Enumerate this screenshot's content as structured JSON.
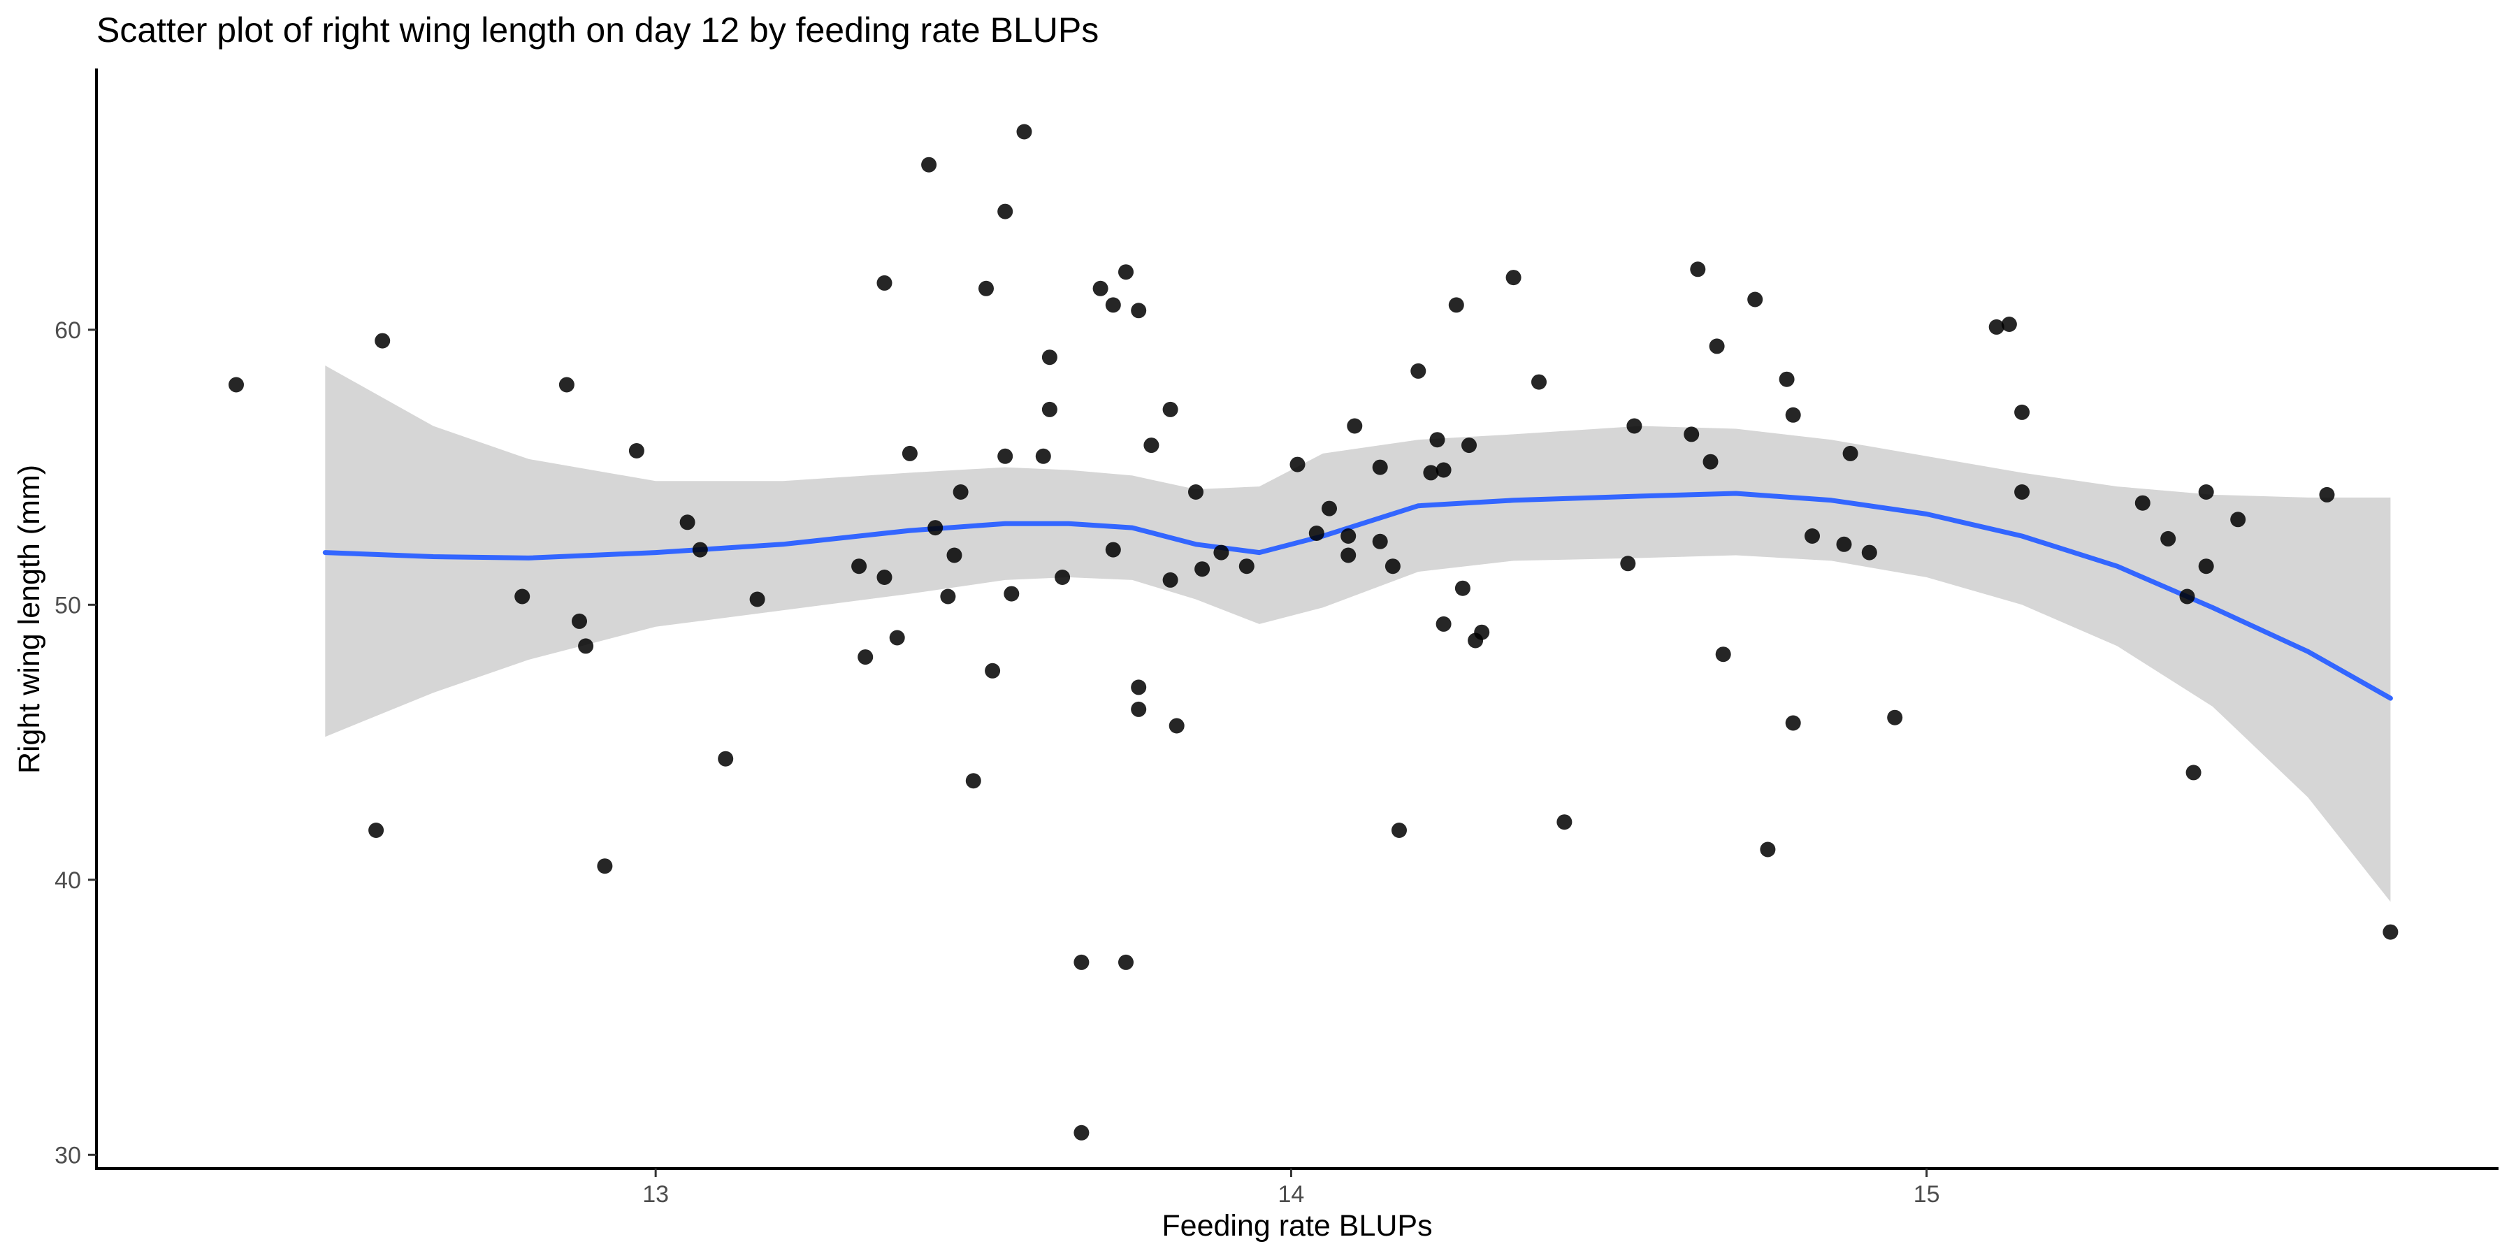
{
  "chart_data": {
    "type": "scatter",
    "title": "Scatter plot of right wing length on day 12 by feeding rate BLUPs",
    "xlabel": "Feeding rate BLUPs",
    "ylabel": "Right wing length (mm)",
    "xlim": [
      12.12,
      15.9
    ],
    "ylim": [
      29.5,
      69.5
    ],
    "x_ticks": [
      13,
      14,
      15
    ],
    "y_ticks": [
      30,
      40,
      50,
      60
    ],
    "grid": false,
    "legend": "none",
    "point_color": "#000000",
    "smooth_color": "#3366ff",
    "band_color": "#999999",
    "points": [
      {
        "x": 12.34,
        "y": 58.0
      },
      {
        "x": 12.57,
        "y": 59.6
      },
      {
        "x": 12.56,
        "y": 41.8
      },
      {
        "x": 12.79,
        "y": 50.3
      },
      {
        "x": 12.86,
        "y": 58.0
      },
      {
        "x": 12.88,
        "y": 49.4
      },
      {
        "x": 12.89,
        "y": 48.5
      },
      {
        "x": 12.92,
        "y": 40.5
      },
      {
        "x": 12.97,
        "y": 55.6
      },
      {
        "x": 13.05,
        "y": 53.0
      },
      {
        "x": 13.07,
        "y": 52.0
      },
      {
        "x": 13.11,
        "y": 44.4
      },
      {
        "x": 13.16,
        "y": 50.2
      },
      {
        "x": 13.32,
        "y": 51.4
      },
      {
        "x": 13.33,
        "y": 48.1
      },
      {
        "x": 13.36,
        "y": 51.0
      },
      {
        "x": 13.36,
        "y": 61.7
      },
      {
        "x": 13.38,
        "y": 48.8
      },
      {
        "x": 13.4,
        "y": 55.5
      },
      {
        "x": 13.43,
        "y": 66.0
      },
      {
        "x": 13.44,
        "y": 52.8
      },
      {
        "x": 13.46,
        "y": 50.3
      },
      {
        "x": 13.47,
        "y": 51.8
      },
      {
        "x": 13.48,
        "y": 54.1
      },
      {
        "x": 13.5,
        "y": 43.6
      },
      {
        "x": 13.52,
        "y": 61.5
      },
      {
        "x": 13.53,
        "y": 47.6
      },
      {
        "x": 13.55,
        "y": 55.4
      },
      {
        "x": 13.55,
        "y": 64.3
      },
      {
        "x": 13.56,
        "y": 50.4
      },
      {
        "x": 13.58,
        "y": 67.2
      },
      {
        "x": 13.61,
        "y": 55.4
      },
      {
        "x": 13.62,
        "y": 57.1
      },
      {
        "x": 13.62,
        "y": 59.0
      },
      {
        "x": 13.64,
        "y": 51.0
      },
      {
        "x": 13.67,
        "y": 30.8
      },
      {
        "x": 13.67,
        "y": 37.0
      },
      {
        "x": 13.7,
        "y": 61.5
      },
      {
        "x": 13.72,
        "y": 52.0
      },
      {
        "x": 13.72,
        "y": 60.9
      },
      {
        "x": 13.74,
        "y": 62.1
      },
      {
        "x": 13.74,
        "y": 37.0
      },
      {
        "x": 13.76,
        "y": 47.0
      },
      {
        "x": 13.76,
        "y": 46.2
      },
      {
        "x": 13.76,
        "y": 60.7
      },
      {
        "x": 13.78,
        "y": 55.8
      },
      {
        "x": 13.81,
        "y": 50.9
      },
      {
        "x": 13.81,
        "y": 57.1
      },
      {
        "x": 13.82,
        "y": 45.6
      },
      {
        "x": 13.85,
        "y": 54.1
      },
      {
        "x": 13.86,
        "y": 51.3
      },
      {
        "x": 13.89,
        "y": 51.9
      },
      {
        "x": 13.93,
        "y": 51.4
      },
      {
        "x": 14.01,
        "y": 55.1
      },
      {
        "x": 14.04,
        "y": 52.6
      },
      {
        "x": 14.06,
        "y": 53.5
      },
      {
        "x": 14.09,
        "y": 52.5
      },
      {
        "x": 14.09,
        "y": 51.8
      },
      {
        "x": 14.1,
        "y": 56.5
      },
      {
        "x": 14.14,
        "y": 52.3
      },
      {
        "x": 14.14,
        "y": 55.0
      },
      {
        "x": 14.16,
        "y": 51.4
      },
      {
        "x": 14.17,
        "y": 41.8
      },
      {
        "x": 14.2,
        "y": 58.5
      },
      {
        "x": 14.22,
        "y": 54.8
      },
      {
        "x": 14.23,
        "y": 56.0
      },
      {
        "x": 14.24,
        "y": 54.9
      },
      {
        "x": 14.24,
        "y": 49.3
      },
      {
        "x": 14.26,
        "y": 60.9
      },
      {
        "x": 14.27,
        "y": 50.6
      },
      {
        "x": 14.28,
        "y": 55.8
      },
      {
        "x": 14.29,
        "y": 48.7
      },
      {
        "x": 14.3,
        "y": 49.0
      },
      {
        "x": 14.35,
        "y": 61.9
      },
      {
        "x": 14.39,
        "y": 58.1
      },
      {
        "x": 14.43,
        "y": 42.1
      },
      {
        "x": 14.53,
        "y": 51.5
      },
      {
        "x": 14.54,
        "y": 56.5
      },
      {
        "x": 14.63,
        "y": 56.2
      },
      {
        "x": 14.64,
        "y": 62.2
      },
      {
        "x": 14.66,
        "y": 55.2
      },
      {
        "x": 14.67,
        "y": 59.4
      },
      {
        "x": 14.68,
        "y": 48.2
      },
      {
        "x": 14.73,
        "y": 61.1
      },
      {
        "x": 14.75,
        "y": 41.1
      },
      {
        "x": 14.78,
        "y": 58.2
      },
      {
        "x": 14.79,
        "y": 45.7
      },
      {
        "x": 14.79,
        "y": 56.9
      },
      {
        "x": 14.82,
        "y": 52.5
      },
      {
        "x": 14.87,
        "y": 52.2
      },
      {
        "x": 14.88,
        "y": 55.5
      },
      {
        "x": 14.91,
        "y": 51.9
      },
      {
        "x": 14.95,
        "y": 45.9
      },
      {
        "x": 15.11,
        "y": 60.1
      },
      {
        "x": 15.13,
        "y": 60.2
      },
      {
        "x": 15.15,
        "y": 57.0
      },
      {
        "x": 15.15,
        "y": 54.1
      },
      {
        "x": 15.34,
        "y": 53.7
      },
      {
        "x": 15.38,
        "y": 52.4
      },
      {
        "x": 15.41,
        "y": 50.3
      },
      {
        "x": 15.42,
        "y": 43.9
      },
      {
        "x": 15.44,
        "y": 51.4
      },
      {
        "x": 15.44,
        "y": 54.1
      },
      {
        "x": 15.49,
        "y": 53.1
      },
      {
        "x": 15.63,
        "y": 54.0
      },
      {
        "x": 15.73,
        "y": 38.1
      }
    ],
    "smooth": [
      {
        "x": 12.48,
        "y": 51.9,
        "lo": 45.2,
        "hi": 58.7
      },
      {
        "x": 12.65,
        "y": 51.75,
        "lo": 46.8,
        "hi": 56.5
      },
      {
        "x": 12.8,
        "y": 51.7,
        "lo": 48.0,
        "hi": 55.3
      },
      {
        "x": 13.0,
        "y": 51.9,
        "lo": 49.2,
        "hi": 54.5
      },
      {
        "x": 13.2,
        "y": 52.2,
        "lo": 49.8,
        "hi": 54.5
      },
      {
        "x": 13.4,
        "y": 52.7,
        "lo": 50.4,
        "hi": 54.8
      },
      {
        "x": 13.55,
        "y": 52.95,
        "lo": 50.9,
        "hi": 55.0
      },
      {
        "x": 13.65,
        "y": 52.95,
        "lo": 51.0,
        "hi": 54.9
      },
      {
        "x": 13.75,
        "y": 52.8,
        "lo": 50.9,
        "hi": 54.7
      },
      {
        "x": 13.85,
        "y": 52.2,
        "lo": 50.2,
        "hi": 54.2
      },
      {
        "x": 13.95,
        "y": 51.9,
        "lo": 49.3,
        "hi": 54.3
      },
      {
        "x": 14.05,
        "y": 52.5,
        "lo": 49.9,
        "hi": 55.5
      },
      {
        "x": 14.2,
        "y": 53.6,
        "lo": 51.2,
        "hi": 56.0
      },
      {
        "x": 14.35,
        "y": 53.8,
        "lo": 51.6,
        "hi": 56.2
      },
      {
        "x": 14.55,
        "y": 53.95,
        "lo": 51.7,
        "hi": 56.5
      },
      {
        "x": 14.7,
        "y": 54.05,
        "lo": 51.8,
        "hi": 56.4
      },
      {
        "x": 14.85,
        "y": 53.8,
        "lo": 51.6,
        "hi": 56.0
      },
      {
        "x": 15.0,
        "y": 53.3,
        "lo": 51.0,
        "hi": 55.4
      },
      {
        "x": 15.15,
        "y": 52.5,
        "lo": 50.0,
        "hi": 54.8
      },
      {
        "x": 15.3,
        "y": 51.4,
        "lo": 48.5,
        "hi": 54.3
      },
      {
        "x": 15.45,
        "y": 49.9,
        "lo": 46.3,
        "hi": 54.0
      },
      {
        "x": 15.6,
        "y": 48.3,
        "lo": 43.0,
        "hi": 53.9
      },
      {
        "x": 15.73,
        "y": 46.6,
        "lo": 39.2,
        "hi": 53.9
      }
    ]
  }
}
